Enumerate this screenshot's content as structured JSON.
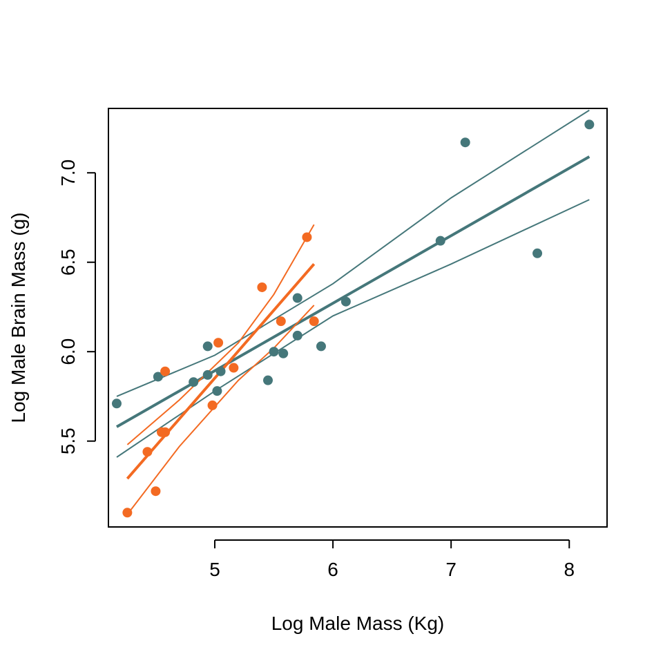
{
  "chart_data": {
    "type": "scatter",
    "title": "",
    "xlabel": "Log Male Mass (Kg)",
    "ylabel": "Log Male Brain Mass (g)",
    "xlim": [
      4.1,
      8.32
    ],
    "ylim": [
      5.02,
      7.36
    ],
    "xticks": [
      5,
      6,
      7,
      8
    ],
    "yticks": [
      5.5,
      6.0,
      6.5,
      7.0
    ],
    "xtick_labels": [
      "5",
      "6",
      "7",
      "8"
    ],
    "ytick_labels": [
      "5.5",
      "6.0",
      "6.5",
      "7.0"
    ],
    "grid": false,
    "legend": "none",
    "series": [
      {
        "color": "#45777A",
        "points": [
          [
            4.17,
            5.71
          ],
          [
            4.52,
            5.86
          ],
          [
            4.82,
            5.83
          ],
          [
            4.94,
            6.03
          ],
          [
            4.94,
            5.87
          ],
          [
            5.02,
            5.78
          ],
          [
            5.05,
            5.89
          ],
          [
            5.45,
            5.84
          ],
          [
            5.5,
            6.0
          ],
          [
            5.58,
            5.99
          ],
          [
            5.7,
            6.3
          ],
          [
            5.7,
            6.09
          ],
          [
            5.9,
            6.03
          ],
          [
            6.11,
            6.28
          ],
          [
            6.91,
            6.62
          ],
          [
            7.12,
            7.17
          ],
          [
            7.73,
            6.55
          ],
          [
            8.17,
            7.27
          ]
        ],
        "fit": {
          "x": [
            4.17,
            8.17
          ],
          "y": [
            5.58,
            7.09
          ]
        },
        "ci_upper": [
          [
            4.17,
            5.75
          ],
          [
            5.0,
            5.98
          ],
          [
            6.0,
            6.38
          ],
          [
            7.0,
            6.86
          ],
          [
            8.17,
            7.35
          ]
        ],
        "ci_lower": [
          [
            4.17,
            5.41
          ],
          [
            5.0,
            5.78
          ],
          [
            6.0,
            6.2
          ],
          [
            7.0,
            6.49
          ],
          [
            8.17,
            6.85
          ]
        ]
      },
      {
        "color": "#F36A22",
        "points": [
          [
            4.26,
            5.1
          ],
          [
            4.43,
            5.44
          ],
          [
            4.5,
            5.22
          ],
          [
            4.55,
            5.55
          ],
          [
            4.58,
            5.89
          ],
          [
            4.58,
            5.55
          ],
          [
            4.98,
            5.7
          ],
          [
            5.03,
            6.05
          ],
          [
            5.16,
            5.91
          ],
          [
            5.4,
            6.36
          ],
          [
            5.56,
            6.17
          ],
          [
            5.78,
            6.64
          ],
          [
            5.84,
            6.17
          ]
        ],
        "fit": {
          "x": [
            4.26,
            5.84
          ],
          "y": [
            5.29,
            6.49
          ]
        },
        "ci_upper": [
          [
            4.26,
            5.48
          ],
          [
            4.7,
            5.73
          ],
          [
            5.2,
            6.05
          ],
          [
            5.5,
            6.32
          ],
          [
            5.84,
            6.71
          ]
        ],
        "ci_lower": [
          [
            4.26,
            5.09
          ],
          [
            4.7,
            5.47
          ],
          [
            5.2,
            5.84
          ],
          [
            5.5,
            6.02
          ],
          [
            5.84,
            6.26
          ]
        ]
      }
    ]
  }
}
